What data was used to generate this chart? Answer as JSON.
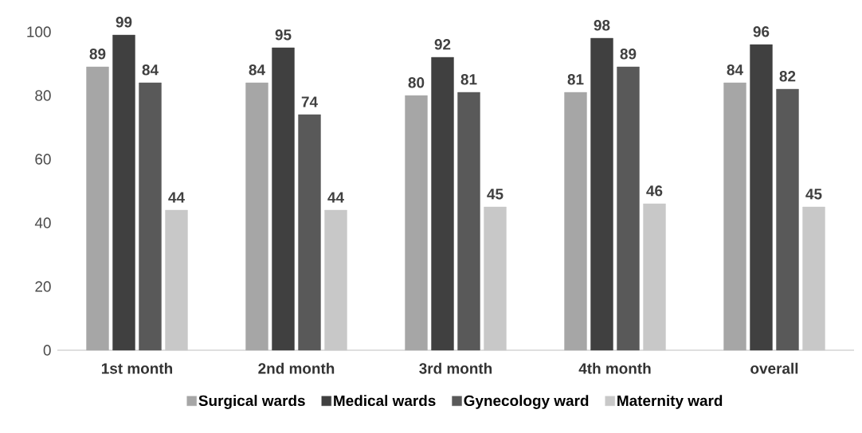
{
  "chart_data": {
    "type": "bar",
    "categories": [
      "1st month",
      "2nd month",
      "3rd month",
      "4th month",
      "overall"
    ],
    "series": [
      {
        "name": "Surgical wards",
        "color": "#a6a6a6",
        "values": [
          89,
          84,
          80,
          81,
          84
        ]
      },
      {
        "name": "Medical wards",
        "color": "#404040",
        "values": [
          99,
          95,
          92,
          98,
          96
        ]
      },
      {
        "name": "Gynecology ward",
        "color": "#595959",
        "values": [
          84,
          74,
          81,
          89,
          82
        ]
      },
      {
        "name": "Maternity ward",
        "color": "#c8c8c8",
        "values": [
          44,
          44,
          45,
          46,
          45
        ]
      }
    ],
    "ylim": [
      0,
      100
    ],
    "yticks": [
      0,
      20,
      40,
      60,
      80,
      100
    ],
    "data_labels": true,
    "legend": "bottom",
    "grid": false
  }
}
